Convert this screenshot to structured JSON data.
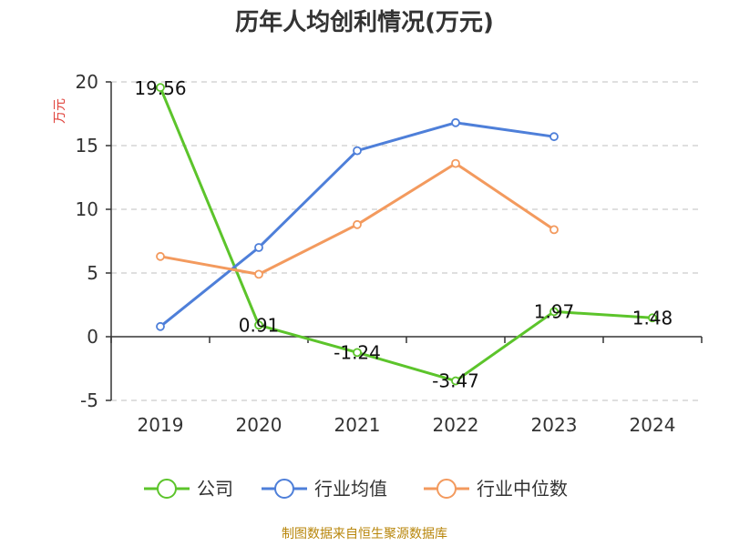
{
  "title": "历年人均创利情况(万元)",
  "source": "制图数据来自恒生聚源数据库",
  "colors": {
    "company": "#5cc42b",
    "industry_avg": "#4e7fd9",
    "industry_median": "#f39a5e",
    "grid": "#cccccc",
    "axis": "#333333",
    "ylabel": "#e0413a"
  },
  "chart_data": {
    "type": "line",
    "title": "历年人均创利情况(万元)",
    "xlabel": "",
    "ylabel": "万元",
    "ylim": [
      -5,
      20
    ],
    "yticks": [
      "-5",
      "0",
      "5",
      "10",
      "15",
      "20"
    ],
    "categories": [
      "2019",
      "2020",
      "2021",
      "2022",
      "2023",
      "2024"
    ],
    "grid": "horizontal dashed",
    "legend_position": "bottom",
    "series": [
      {
        "name": "公司",
        "key": "company",
        "values": [
          19.56,
          0.91,
          -1.24,
          -3.47,
          1.97,
          1.48
        ],
        "labels": [
          "19.56",
          "0.91",
          "-1.24",
          "-3.47",
          "1.97",
          "1.48"
        ]
      },
      {
        "name": "行业均值",
        "key": "industry_avg",
        "values": [
          0.8,
          7.0,
          14.6,
          16.8,
          15.7,
          null
        ]
      },
      {
        "name": "行业中位数",
        "key": "industry_median",
        "values": [
          6.3,
          4.9,
          8.8,
          13.6,
          8.4,
          null
        ]
      }
    ]
  }
}
